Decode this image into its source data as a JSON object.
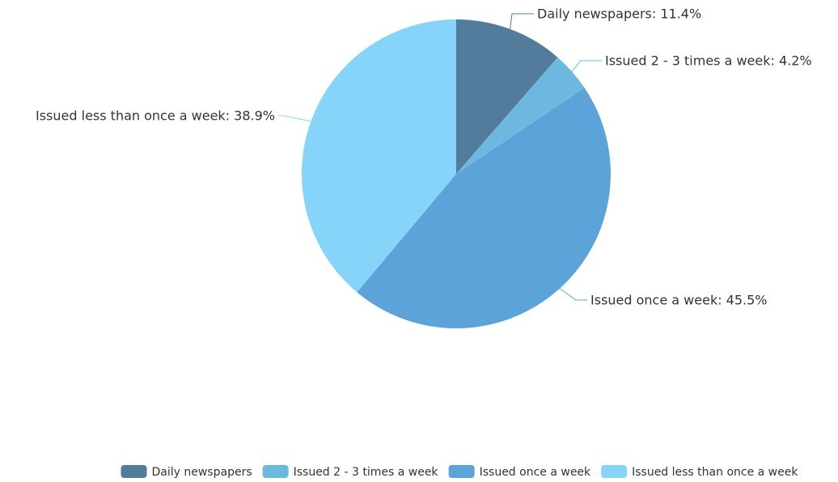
{
  "chart_data": {
    "type": "pie",
    "slices": [
      {
        "label": "Daily newspapers",
        "value": 11.4,
        "color": "#537b9b",
        "display": "Daily newspapers: 11.4%"
      },
      {
        "label": "Issued 2 - 3 times a week",
        "value": 4.2,
        "color": "#6db8df",
        "display": "Issued 2 - 3 times a week: 4.2%"
      },
      {
        "label": "Issued once a week",
        "value": 45.5,
        "color": "#5ba3d8",
        "display": "Issued once a week: 45.5%"
      },
      {
        "label": "Issued less than once a week",
        "value": 38.9,
        "color": "#87d4fb",
        "display": "Issued less than once a week: 38.9%"
      }
    ],
    "legend_position": "bottom"
  }
}
